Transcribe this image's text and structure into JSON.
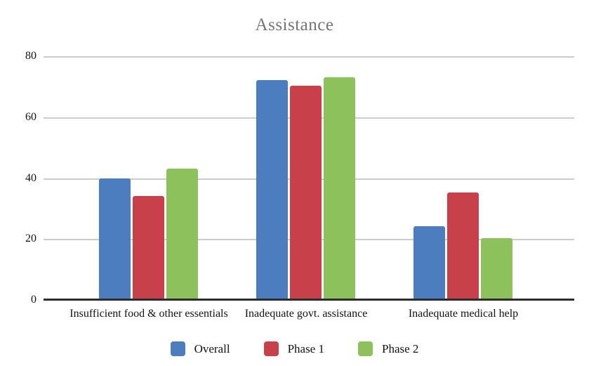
{
  "chart_data": {
    "type": "bar",
    "title": "Assistance",
    "categories": [
      "Insufficient food & other essentials",
      "Inadequate govt. assistance",
      "Inadequate medical help"
    ],
    "series": [
      {
        "name": "Overall",
        "color": "#4C7DBE",
        "values": [
          39.6,
          72,
          24
        ]
      },
      {
        "name": "Phase 1",
        "color": "#C8404A",
        "values": [
          34,
          70,
          35
        ]
      },
      {
        "name": "Phase 2",
        "color": "#8CC15C",
        "values": [
          43,
          72.8,
          20
        ]
      }
    ],
    "xlabel": "",
    "ylabel": "",
    "ylim": [
      0,
      80
    ],
    "yticks": [
      0,
      20,
      40,
      60,
      80
    ],
    "grid": true,
    "legend_position": "bottom",
    "colors": {
      "title": "#757575",
      "gridline": "#cccccc",
      "axis_line": "#2d2d2d",
      "text": "#111111",
      "background": "#ffffff"
    }
  }
}
